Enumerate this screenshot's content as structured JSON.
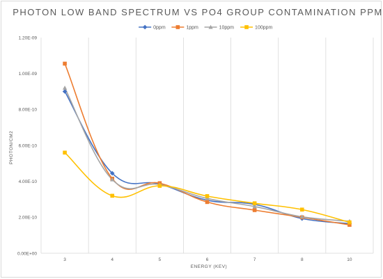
{
  "chart_data": {
    "type": "line",
    "title": "PHOTON LOW BAND SPECTRUM VS PO4 GROUP CONTAMINATION PPM",
    "xlabel": "ENERGY (KEV)",
    "ylabel": "PHOTON/CM2",
    "categories": [
      "3",
      "4",
      "5",
      "6",
      "7",
      "8",
      "10"
    ],
    "y_ticks": [
      "0.00E+00",
      "2.00E-10",
      "4.00E-10",
      "6.00E-10",
      "8.00E-10",
      "1.00E-09",
      "1.20E-09"
    ],
    "ylim": [
      0,
      1.2e-09
    ],
    "y_step": 2e-10,
    "grid": "vertical",
    "legend_position": "top",
    "line_style": "smoothed",
    "series": [
      {
        "name": "0ppm",
        "color": "#4472C4",
        "marker": "diamond",
        "values": [
          9e-10,
          4.45e-10,
          3.85e-10,
          2.95e-10,
          2.72e-10,
          1.93e-10,
          1.65e-10
        ]
      },
      {
        "name": "1ppm",
        "color": "#ED7D31",
        "marker": "square",
        "values": [
          1.055e-09,
          4.15e-10,
          3.9e-10,
          2.85e-10,
          2.4e-10,
          2e-10,
          1.58e-10
        ]
      },
      {
        "name": "10ppm",
        "color": "#A5A5A5",
        "marker": "triangle",
        "values": [
          9.2e-10,
          4.1e-10,
          3.82e-10,
          3.05e-10,
          2.6e-10,
          2.03e-10,
          1.78e-10
        ]
      },
      {
        "name": "100ppm",
        "color": "#FFC000",
        "marker": "square",
        "values": [
          5.6e-10,
          3.2e-10,
          3.75e-10,
          3.18e-10,
          2.78e-10,
          2.43e-10,
          1.72e-10
        ]
      }
    ]
  }
}
